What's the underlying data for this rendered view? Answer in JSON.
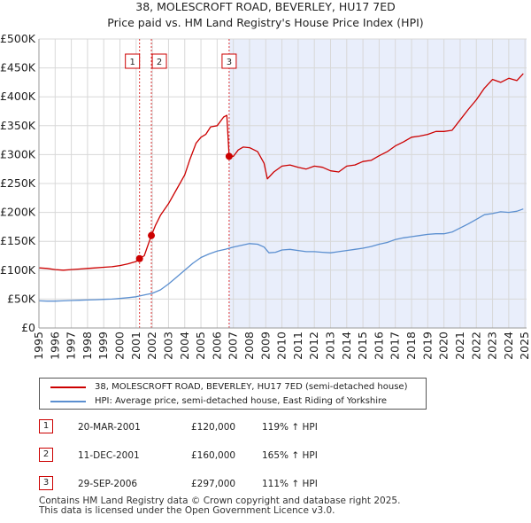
{
  "chart_data": {
    "type": "line",
    "title": "38, MOLESCROFT ROAD, BEVERLEY, HU17 7ED",
    "subtitle": "Price paid vs. HM Land Registry's House Price Index (HPI)",
    "xlim": [
      1995.0,
      2025.1
    ],
    "ylim": [
      0,
      500000
    ],
    "y_ticks": [
      {
        "value": 0,
        "label": "£0"
      },
      {
        "value": 50000,
        "label": "£50K"
      },
      {
        "value": 100000,
        "label": "£100K"
      },
      {
        "value": 150000,
        "label": "£150K"
      },
      {
        "value": 200000,
        "label": "£200K"
      },
      {
        "value": 250000,
        "label": "£250K"
      },
      {
        "value": 300000,
        "label": "£300K"
      },
      {
        "value": 350000,
        "label": "£350K"
      },
      {
        "value": 400000,
        "label": "£400K"
      },
      {
        "value": 450000,
        "label": "£450K"
      },
      {
        "value": 500000,
        "label": "£500K"
      }
    ],
    "x_ticks": [
      "1995",
      "1996",
      "1997",
      "1998",
      "1999",
      "2000",
      "2001",
      "2002",
      "2003",
      "2004",
      "2005",
      "2006",
      "2007",
      "2008",
      "2009",
      "2010",
      "2011",
      "2012",
      "2013",
      "2014",
      "2015",
      "2016",
      "2017",
      "2018",
      "2019",
      "2020",
      "2021",
      "2022",
      "2023",
      "2024",
      "2025"
    ],
    "series": [
      {
        "name": "38, MOLESCROFT ROAD, BEVERLEY, HU17 7ED (semi-detached house)",
        "color": "#cc0000",
        "x": [
          1995.0,
          1995.5,
          1996.0,
          1996.5,
          1997.0,
          1997.5,
          1998.0,
          1998.5,
          1999.0,
          1999.5,
          2000.0,
          2000.5,
          2001.0,
          2001.21,
          2001.5,
          2001.94,
          2002.2,
          2002.5,
          2003.0,
          2003.5,
          2004.0,
          2004.3,
          2004.7,
          2005.0,
          2005.3,
          2005.6,
          2006.0,
          2006.4,
          2006.6,
          2006.74,
          2007.0,
          2007.3,
          2007.6,
          2008.0,
          2008.5,
          2008.9,
          2009.1,
          2009.5,
          2010.0,
          2010.5,
          2011.0,
          2011.5,
          2012.0,
          2012.5,
          2013.0,
          2013.5,
          2014.0,
          2014.5,
          2015.0,
          2015.5,
          2016.0,
          2016.5,
          2017.0,
          2017.5,
          2018.0,
          2018.5,
          2019.0,
          2019.5,
          2020.0,
          2020.5,
          2021.0,
          2021.5,
          2022.0,
          2022.5,
          2023.0,
          2023.5,
          2024.0,
          2024.5,
          2024.9
        ],
        "y": [
          104000,
          103000,
          101000,
          100000,
          101000,
          102000,
          103000,
          104000,
          105000,
          106000,
          108000,
          111000,
          115000,
          120000,
          125000,
          160000,
          178000,
          195000,
          215000,
          240000,
          265000,
          290000,
          320000,
          330000,
          335000,
          348000,
          350000,
          365000,
          368000,
          297000,
          297000,
          308000,
          313000,
          312000,
          305000,
          285000,
          258000,
          270000,
          280000,
          282000,
          278000,
          275000,
          280000,
          278000,
          272000,
          270000,
          280000,
          282000,
          288000,
          290000,
          298000,
          305000,
          315000,
          322000,
          330000,
          332000,
          335000,
          340000,
          340000,
          342000,
          360000,
          378000,
          395000,
          415000,
          430000,
          425000,
          432000,
          428000,
          440000
        ]
      },
      {
        "name": "HPI: Average price, semi-detached house, East Riding of Yorkshire",
        "color": "#5b8fd0",
        "x": [
          1995.0,
          1995.5,
          1996.0,
          1996.5,
          1997.0,
          1997.5,
          1998.0,
          1998.5,
          1999.0,
          1999.5,
          2000.0,
          2000.5,
          2001.0,
          2001.5,
          2002.0,
          2002.5,
          2003.0,
          2003.5,
          2004.0,
          2004.5,
          2005.0,
          2005.5,
          2006.0,
          2006.5,
          2007.0,
          2007.5,
          2008.0,
          2008.5,
          2008.9,
          2009.2,
          2009.6,
          2010.0,
          2010.5,
          2011.0,
          2011.5,
          2012.0,
          2012.5,
          2013.0,
          2013.5,
          2014.0,
          2014.5,
          2015.0,
          2015.5,
          2016.0,
          2016.5,
          2017.0,
          2017.5,
          2018.0,
          2018.5,
          2019.0,
          2019.5,
          2020.0,
          2020.5,
          2021.0,
          2021.5,
          2022.0,
          2022.5,
          2023.0,
          2023.5,
          2024.0,
          2024.5,
          2024.9
        ],
        "y": [
          47000,
          46500,
          46500,
          47000,
          47500,
          48000,
          48500,
          49000,
          49500,
          50000,
          51000,
          52500,
          54000,
          57000,
          60000,
          66000,
          76000,
          88000,
          100000,
          112000,
          122000,
          128000,
          133000,
          136000,
          140000,
          143000,
          146000,
          145000,
          140000,
          130000,
          131000,
          135000,
          136000,
          134000,
          132000,
          132000,
          131000,
          130000,
          132000,
          134000,
          136000,
          138000,
          141000,
          145000,
          148000,
          153000,
          156000,
          158000,
          160000,
          162000,
          163000,
          163000,
          166000,
          173000,
          180000,
          188000,
          196000,
          198000,
          201000,
          200000,
          202000,
          206000
        ]
      }
    ],
    "sales": [
      {
        "num": "1",
        "x": 2001.21,
        "y": 120000
      },
      {
        "num": "2",
        "x": 2001.94,
        "y": 160000
      },
      {
        "num": "3",
        "x": 2006.74,
        "y": 297000
      }
    ],
    "shaded_from": 2006.74
  },
  "legend": {
    "property_label": "38, MOLESCROFT ROAD, BEVERLEY, HU17 7ED (semi-detached house)",
    "hpi_label": "HPI: Average price, semi-detached house, East Riding of Yorkshire"
  },
  "transactions": [
    {
      "num": "1",
      "date": "20-MAR-2001",
      "price": "£120,000",
      "hpi": "119% ↑ HPI"
    },
    {
      "num": "2",
      "date": "11-DEC-2001",
      "price": "£160,000",
      "hpi": "165% ↑ HPI"
    },
    {
      "num": "3",
      "date": "29-SEP-2006",
      "price": "£297,000",
      "hpi": "111% ↑ HPI"
    }
  ],
  "footer": {
    "line1": "Contains HM Land Registry data © Crown copyright and database right 2025.",
    "line2": "This data is licensed under the Open Government Licence v3.0."
  }
}
